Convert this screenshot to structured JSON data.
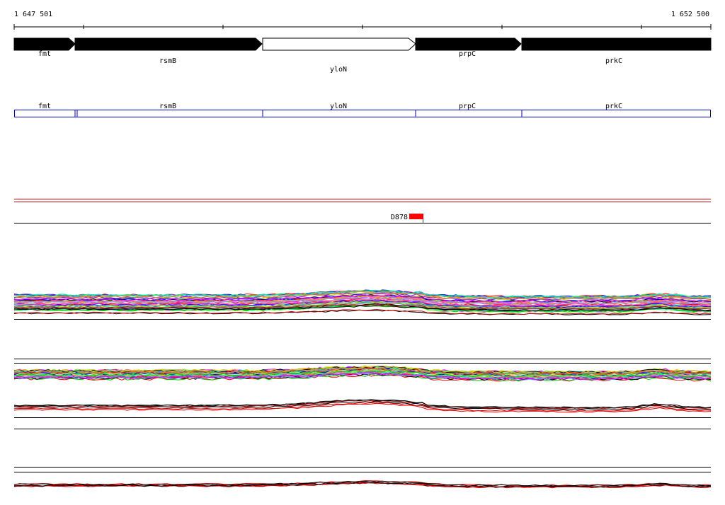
{
  "coordinates": {
    "start": "1 647 501",
    "end": "1 652 500"
  },
  "genes": [
    {
      "name": "fmt",
      "strand": "+",
      "filled": true
    },
    {
      "name": "rsmB",
      "strand": "+",
      "filled": true
    },
    {
      "name": "yloN",
      "strand": "+",
      "filled": false
    },
    {
      "name": "prpC",
      "strand": "+",
      "filled": true
    },
    {
      "name": "prkC",
      "strand": "+",
      "filled": true
    }
  ],
  "operon_track": {
    "color": "#0000cc",
    "labels": [
      "fmt",
      "rsmB",
      "yloN",
      "prpC",
      "prkC"
    ]
  },
  "features": [
    {
      "name": "D878",
      "color": "#ff0000"
    }
  ],
  "colors": {
    "gene_fill": "#000000",
    "operon_outline": "#0000cc",
    "highlight": "#ff0000",
    "expression_palette": [
      "#ff0000",
      "#00cc00",
      "#0000ff",
      "#ff00ff",
      "#00cccc",
      "#cccc00",
      "#ff8800",
      "#8800ff",
      "#00ff88",
      "#888888",
      "#ff66aa",
      "#66aaff",
      "#aaff66",
      "#000000"
    ]
  }
}
